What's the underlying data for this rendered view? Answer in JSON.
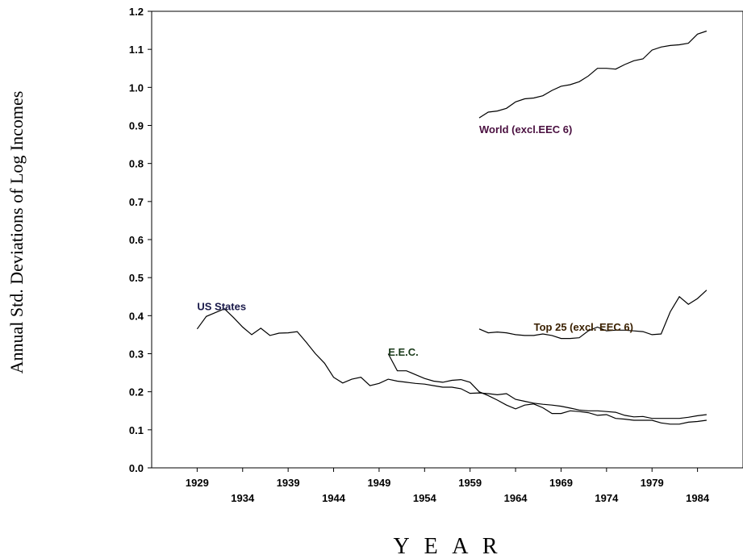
{
  "chart_data": {
    "type": "line",
    "title": "",
    "xlabel": "Y E A R",
    "ylabel": "Annual Std. Deviations of Log Incomes",
    "xlim": [
      1924,
      1989
    ],
    "ylim": [
      0.0,
      1.2
    ],
    "grid": false,
    "x_ticks": [
      1929,
      1934,
      1939,
      1944,
      1949,
      1954,
      1959,
      1964,
      1969,
      1974,
      1979,
      1984
    ],
    "x_tick_labels": [
      "1929",
      "1934",
      "1939",
      "1944",
      "1949",
      "1954",
      "1959",
      "1964",
      "1969",
      "1974",
      "1979",
      "1984"
    ],
    "y_ticks": [
      0.0,
      0.1,
      0.2,
      0.3,
      0.4,
      0.5,
      0.6,
      0.7,
      0.8,
      0.9,
      1.0,
      1.1,
      1.2
    ],
    "y_tick_labels": [
      "0.0",
      "0.1",
      "0.2",
      "0.3",
      "0.4",
      "0.5",
      "0.6",
      "0.7",
      "0.8",
      "0.9",
      "1.0",
      "1.1",
      "1.2"
    ],
    "series": [
      {
        "name": "World (excl.EEC 6)",
        "label_color": "#4a1040",
        "label_anchor": [
          1960,
          0.88
        ],
        "x": [
          1960,
          1961,
          1962,
          1963,
          1964,
          1965,
          1966,
          1967,
          1968,
          1969,
          1970,
          1971,
          1972,
          1973,
          1974,
          1975,
          1976,
          1977,
          1978,
          1979,
          1980,
          1981,
          1982,
          1983,
          1984,
          1985
        ],
        "values": [
          0.92,
          0.935,
          0.938,
          0.945,
          0.962,
          0.97,
          0.972,
          0.978,
          0.992,
          1.003,
          1.007,
          1.015,
          1.03,
          1.05,
          1.05,
          1.048,
          1.06,
          1.07,
          1.075,
          1.098,
          1.106,
          1.11,
          1.112,
          1.116,
          1.14,
          1.148
        ]
      },
      {
        "name": "Top 25 (excl. EEC 6)",
        "label_color": "#3a2000",
        "label_anchor": [
          1966,
          0.36
        ],
        "x": [
          1960,
          1961,
          1962,
          1963,
          1964,
          1965,
          1966,
          1967,
          1968,
          1969,
          1970,
          1971,
          1972,
          1973,
          1974,
          1975,
          1976,
          1977,
          1978,
          1979,
          1980,
          1981,
          1982,
          1983,
          1984,
          1985
        ],
        "values": [
          0.365,
          0.355,
          0.357,
          0.355,
          0.35,
          0.348,
          0.348,
          0.352,
          0.348,
          0.34,
          0.34,
          0.342,
          0.36,
          0.37,
          0.36,
          0.362,
          0.362,
          0.36,
          0.358,
          0.35,
          0.352,
          0.41,
          0.45,
          0.43,
          0.445,
          0.467
        ]
      },
      {
        "name": "US States",
        "label_color": "#1a1a4a",
        "label_anchor": [
          1929,
          0.415
        ],
        "x": [
          1929,
          1930,
          1931,
          1932,
          1933,
          1934,
          1935,
          1936,
          1937,
          1938,
          1939,
          1940,
          1941,
          1942,
          1943,
          1944,
          1945,
          1946,
          1947,
          1948,
          1949,
          1950,
          1951,
          1952,
          1953,
          1954,
          1955,
          1956,
          1957,
          1958,
          1959,
          1960,
          1961,
          1962,
          1963,
          1964,
          1965,
          1966,
          1967,
          1968,
          1969,
          1970,
          1971,
          1972,
          1973,
          1974,
          1975,
          1976,
          1977,
          1978,
          1979,
          1980,
          1981,
          1982,
          1983,
          1984,
          1985
        ],
        "values": [
          0.365,
          0.398,
          0.408,
          0.418,
          0.395,
          0.37,
          0.35,
          0.367,
          0.348,
          0.354,
          0.355,
          0.358,
          0.33,
          0.3,
          0.275,
          0.238,
          0.223,
          0.233,
          0.238,
          0.216,
          0.222,
          0.233,
          0.228,
          0.225,
          0.222,
          0.22,
          0.216,
          0.212,
          0.212,
          0.208,
          0.196,
          0.197,
          0.195,
          0.192,
          0.195,
          0.18,
          0.175,
          0.17,
          0.167,
          0.165,
          0.162,
          0.157,
          0.152,
          0.15,
          0.15,
          0.148,
          0.146,
          0.138,
          0.134,
          0.135,
          0.13,
          0.13,
          0.13,
          0.13,
          0.133,
          0.137,
          0.14
        ]
      },
      {
        "name": "E.E.C.",
        "label_color": "#1a3a1a",
        "label_anchor": [
          1950,
          0.295
        ],
        "x": [
          1950,
          1951,
          1952,
          1953,
          1954,
          1955,
          1956,
          1957,
          1958,
          1959,
          1960,
          1961,
          1962,
          1963,
          1964,
          1965,
          1966,
          1967,
          1968,
          1969,
          1970,
          1971,
          1972,
          1973,
          1974,
          1975,
          1976,
          1977,
          1978,
          1979,
          1980,
          1981,
          1982,
          1983,
          1984,
          1985
        ],
        "values": [
          0.3,
          0.255,
          0.255,
          0.245,
          0.235,
          0.228,
          0.225,
          0.23,
          0.232,
          0.225,
          0.2,
          0.19,
          0.178,
          0.165,
          0.155,
          0.165,
          0.168,
          0.158,
          0.143,
          0.143,
          0.15,
          0.148,
          0.145,
          0.138,
          0.14,
          0.13,
          0.128,
          0.125,
          0.125,
          0.125,
          0.118,
          0.115,
          0.115,
          0.12,
          0.122,
          0.125
        ]
      }
    ]
  }
}
